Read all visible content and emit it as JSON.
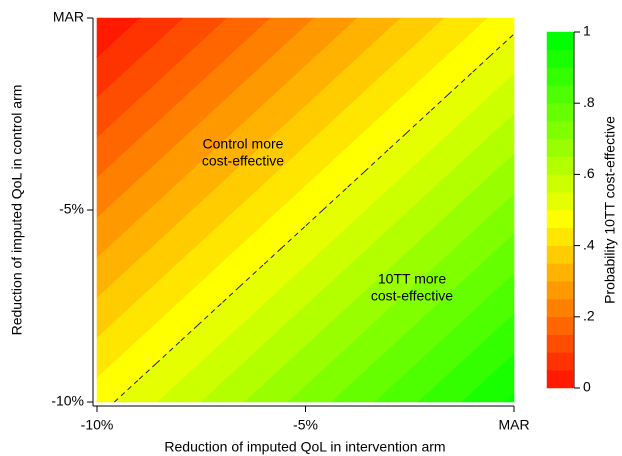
{
  "chart_data": {
    "type": "contour",
    "xlabel": "Reduction of imputed QoL in intervention arm",
    "ylabel": "Reduction of imputed QoL in control arm",
    "colorbar_label": "Probability 10TT cost-effective",
    "annotations": [
      "Control more",
      "cost-effective",
      "10TT more",
      "cost-effective"
    ],
    "xlim": [
      -10,
      0
    ],
    "ylim": [
      -10,
      0
    ],
    "xticks": [
      {
        "value": -10,
        "label": "-10%"
      },
      {
        "value": -5,
        "label": "-5%"
      },
      {
        "value": 0,
        "label": "MAR"
      }
    ],
    "yticks": [
      {
        "value": -10,
        "label": "-10%"
      },
      {
        "value": -5,
        "label": "-5%"
      },
      {
        "value": 0,
        "label": "MAR"
      }
    ],
    "field": {
      "x": [
        -10,
        -9,
        -8,
        -7,
        -6,
        -5,
        -4,
        -3,
        -2,
        -1,
        0
      ],
      "y": [
        -10,
        -9,
        -8,
        -7,
        -6,
        -5,
        -4,
        -3,
        -2,
        -1,
        0
      ],
      "z": [
        [
          0.48,
          0.528,
          0.576,
          0.624,
          0.672,
          0.72,
          0.768,
          0.816,
          0.864,
          0.912,
          0.96
        ],
        [
          0.432,
          0.48,
          0.528,
          0.576,
          0.624,
          0.672,
          0.72,
          0.768,
          0.816,
          0.864,
          0.912
        ],
        [
          0.384,
          0.432,
          0.48,
          0.528,
          0.576,
          0.624,
          0.672,
          0.72,
          0.768,
          0.816,
          0.864
        ],
        [
          0.336,
          0.384,
          0.432,
          0.48,
          0.528,
          0.576,
          0.624,
          0.672,
          0.72,
          0.768,
          0.816
        ],
        [
          0.288,
          0.336,
          0.384,
          0.432,
          0.48,
          0.528,
          0.576,
          0.624,
          0.672,
          0.72,
          0.768
        ],
        [
          0.24,
          0.288,
          0.336,
          0.384,
          0.432,
          0.48,
          0.528,
          0.576,
          0.624,
          0.672,
          0.72
        ],
        [
          0.192,
          0.24,
          0.288,
          0.336,
          0.384,
          0.432,
          0.48,
          0.528,
          0.576,
          0.624,
          0.672
        ],
        [
          0.144,
          0.192,
          0.24,
          0.288,
          0.336,
          0.384,
          0.432,
          0.48,
          0.528,
          0.576,
          0.624
        ],
        [
          0.096,
          0.144,
          0.192,
          0.24,
          0.288,
          0.336,
          0.384,
          0.432,
          0.48,
          0.528,
          0.576
        ],
        [
          0.048,
          0.096,
          0.144,
          0.192,
          0.24,
          0.288,
          0.336,
          0.384,
          0.432,
          0.48,
          0.528
        ],
        [
          0,
          0.048,
          0.096,
          0.144,
          0.192,
          0.24,
          0.288,
          0.336,
          0.384,
          0.432,
          0.48
        ]
      ]
    },
    "levels": [
      0,
      0.05,
      0.1,
      0.15,
      0.2,
      0.25,
      0.3,
      0.35,
      0.4,
      0.45,
      0.5,
      0.55,
      0.6,
      0.65,
      0.7,
      0.75,
      0.8,
      0.85,
      0.9,
      0.95,
      1
    ],
    "colors": [
      "#ff1a00",
      "#ff3300",
      "#ff4d00",
      "#ff6600",
      "#ff8000",
      "#ff9900",
      "#ffb300",
      "#ffcc00",
      "#ffe600",
      "#ffff00",
      "#e6ff00",
      "#ccff00",
      "#b3ff00",
      "#99ff00",
      "#80ff00",
      "#66ff00",
      "#4dff00",
      "#33ff00",
      "#1aff00",
      "#00ff00"
    ],
    "colorbar_ticks": [
      0,
      {
        "value": 0.2,
        "label": ".2"
      },
      {
        "value": 0.4,
        "label": ".4"
      },
      {
        "value": 0.6,
        "label": ".6"
      },
      {
        "value": 0.8,
        "label": ".8"
      },
      1
    ],
    "dashed_contour": 0.5
  }
}
